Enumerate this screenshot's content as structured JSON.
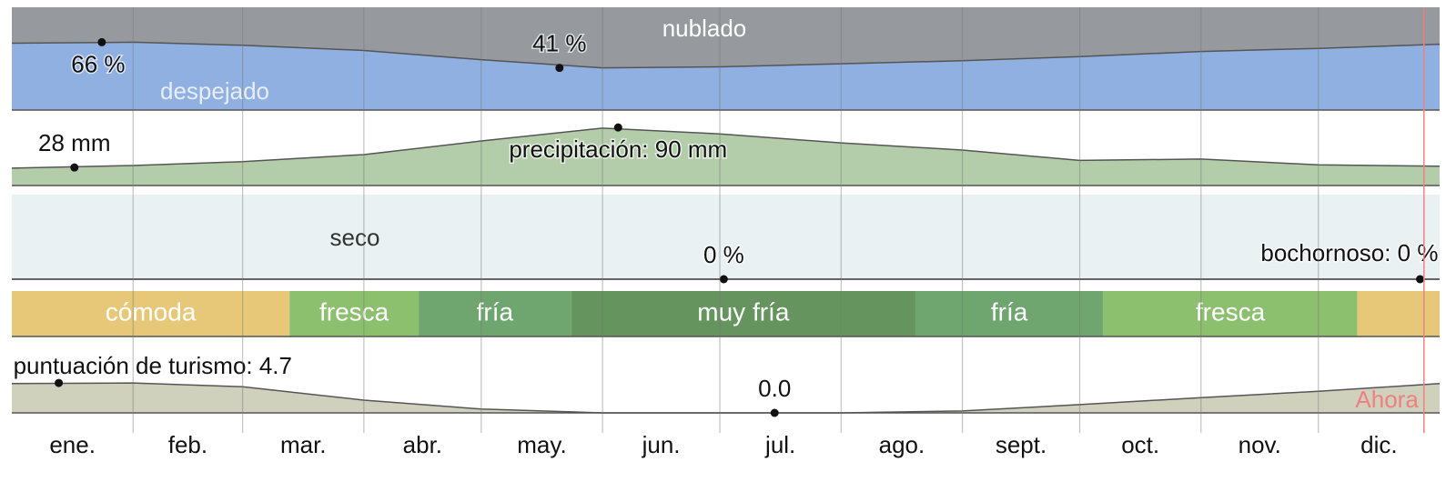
{
  "chart_data": [
    {
      "type": "area",
      "xlim": [
        0,
        365
      ],
      "ylim": [
        0,
        100
      ],
      "background": "#96999e",
      "color": "#8fb0e0",
      "line_color": "#555555",
      "labels": [
        "nublado",
        "despejado"
      ],
      "x": [
        0,
        31,
        59,
        90,
        120,
        151,
        181,
        212,
        243,
        273,
        304,
        334,
        365
      ],
      "values": [
        65,
        66,
        63,
        58,
        49,
        41,
        42,
        45,
        48,
        52,
        57,
        60,
        64
      ],
      "annotations": [
        {
          "x": 23,
          "value": 66,
          "label": "66 %"
        },
        {
          "x": 140,
          "value": 41,
          "label": "41 %"
        }
      ]
    },
    {
      "type": "area",
      "xlim": [
        0,
        365
      ],
      "ylim": [
        0,
        117
      ],
      "color": "#b3cdaa",
      "line_color": "#555555",
      "x": [
        0,
        31,
        59,
        90,
        120,
        151,
        181,
        212,
        243,
        273,
        304,
        334,
        365
      ],
      "values": [
        27,
        31,
        37,
        48,
        69,
        89,
        80,
        66,
        55,
        39,
        41,
        32,
        30
      ],
      "annotations": [
        {
          "x": 16,
          "value": 28,
          "label": "28 mm"
        },
        {
          "x": 155,
          "value": 90,
          "label": "precipitación: 90 mm"
        }
      ]
    },
    {
      "type": "area",
      "xlim": [
        0,
        365
      ],
      "ylim": [
        0,
        100
      ],
      "background": "#e9f1f3",
      "color": "#b3cdaa",
      "line_color": "#333333",
      "labels": [
        "seco"
      ],
      "x": [
        0,
        31,
        59,
        90,
        120,
        151,
        181,
        212,
        243,
        273,
        304,
        334,
        365
      ],
      "values": [
        0,
        0,
        0,
        0,
        0,
        0,
        0,
        0,
        0,
        0,
        0,
        0,
        0
      ],
      "annotations": [
        {
          "x": 182,
          "value": 0,
          "label": "0 %"
        },
        {
          "x": 360,
          "value": 0,
          "label": "bochornoso: 0 %"
        }
      ]
    },
    {
      "type": "bands",
      "xlim": [
        0,
        365
      ],
      "bands": [
        {
          "from": 0,
          "to": 71,
          "label": "cómoda",
          "color": "#e6c878"
        },
        {
          "from": 71,
          "to": 104,
          "label": "fresca",
          "color": "#8cbf6e"
        },
        {
          "from": 104,
          "to": 143,
          "label": "fría",
          "color": "#6fa56f"
        },
        {
          "from": 143,
          "to": 231,
          "label": "muy fría",
          "color": "#66945f"
        },
        {
          "from": 231,
          "to": 279,
          "label": "fría",
          "color": "#6fa56f"
        },
        {
          "from": 279,
          "to": 344,
          "label": "fresca",
          "color": "#8cbf6e"
        },
        {
          "from": 344,
          "to": 365,
          "label": null,
          "color": "#e6c878"
        }
      ]
    },
    {
      "type": "area",
      "xlim": [
        0,
        365
      ],
      "ylim": [
        0,
        10
      ],
      "color": "#cfd1bd",
      "line_color": "#555555",
      "x": [
        0,
        31,
        59,
        90,
        120,
        151,
        181,
        212,
        243,
        273,
        304,
        334,
        365
      ],
      "values": [
        4.6,
        4.7,
        4.1,
        2.0,
        0.6,
        0,
        0,
        0,
        0.3,
        1.3,
        2.4,
        3.4,
        4.6
      ],
      "annotations": [
        {
          "x": 12,
          "value": 4.7,
          "label": "puntuación de turismo: 4.7"
        },
        {
          "x": 195,
          "value": 0,
          "label": "0.0"
        }
      ]
    },
    {
      "type": "axis",
      "xlim": [
        0,
        365
      ],
      "xticks": [
        31,
        59,
        90,
        120,
        151,
        181,
        212,
        243,
        273,
        304,
        334
      ],
      "categories": [
        "ene.",
        "feb.",
        "mar.",
        "abr.",
        "may.",
        "jun.",
        "jul.",
        "ago.",
        "sept.",
        "oct.",
        "nov.",
        "dic."
      ],
      "now": {
        "x": 361,
        "label": "Ahora",
        "color": "#f08080"
      }
    }
  ]
}
